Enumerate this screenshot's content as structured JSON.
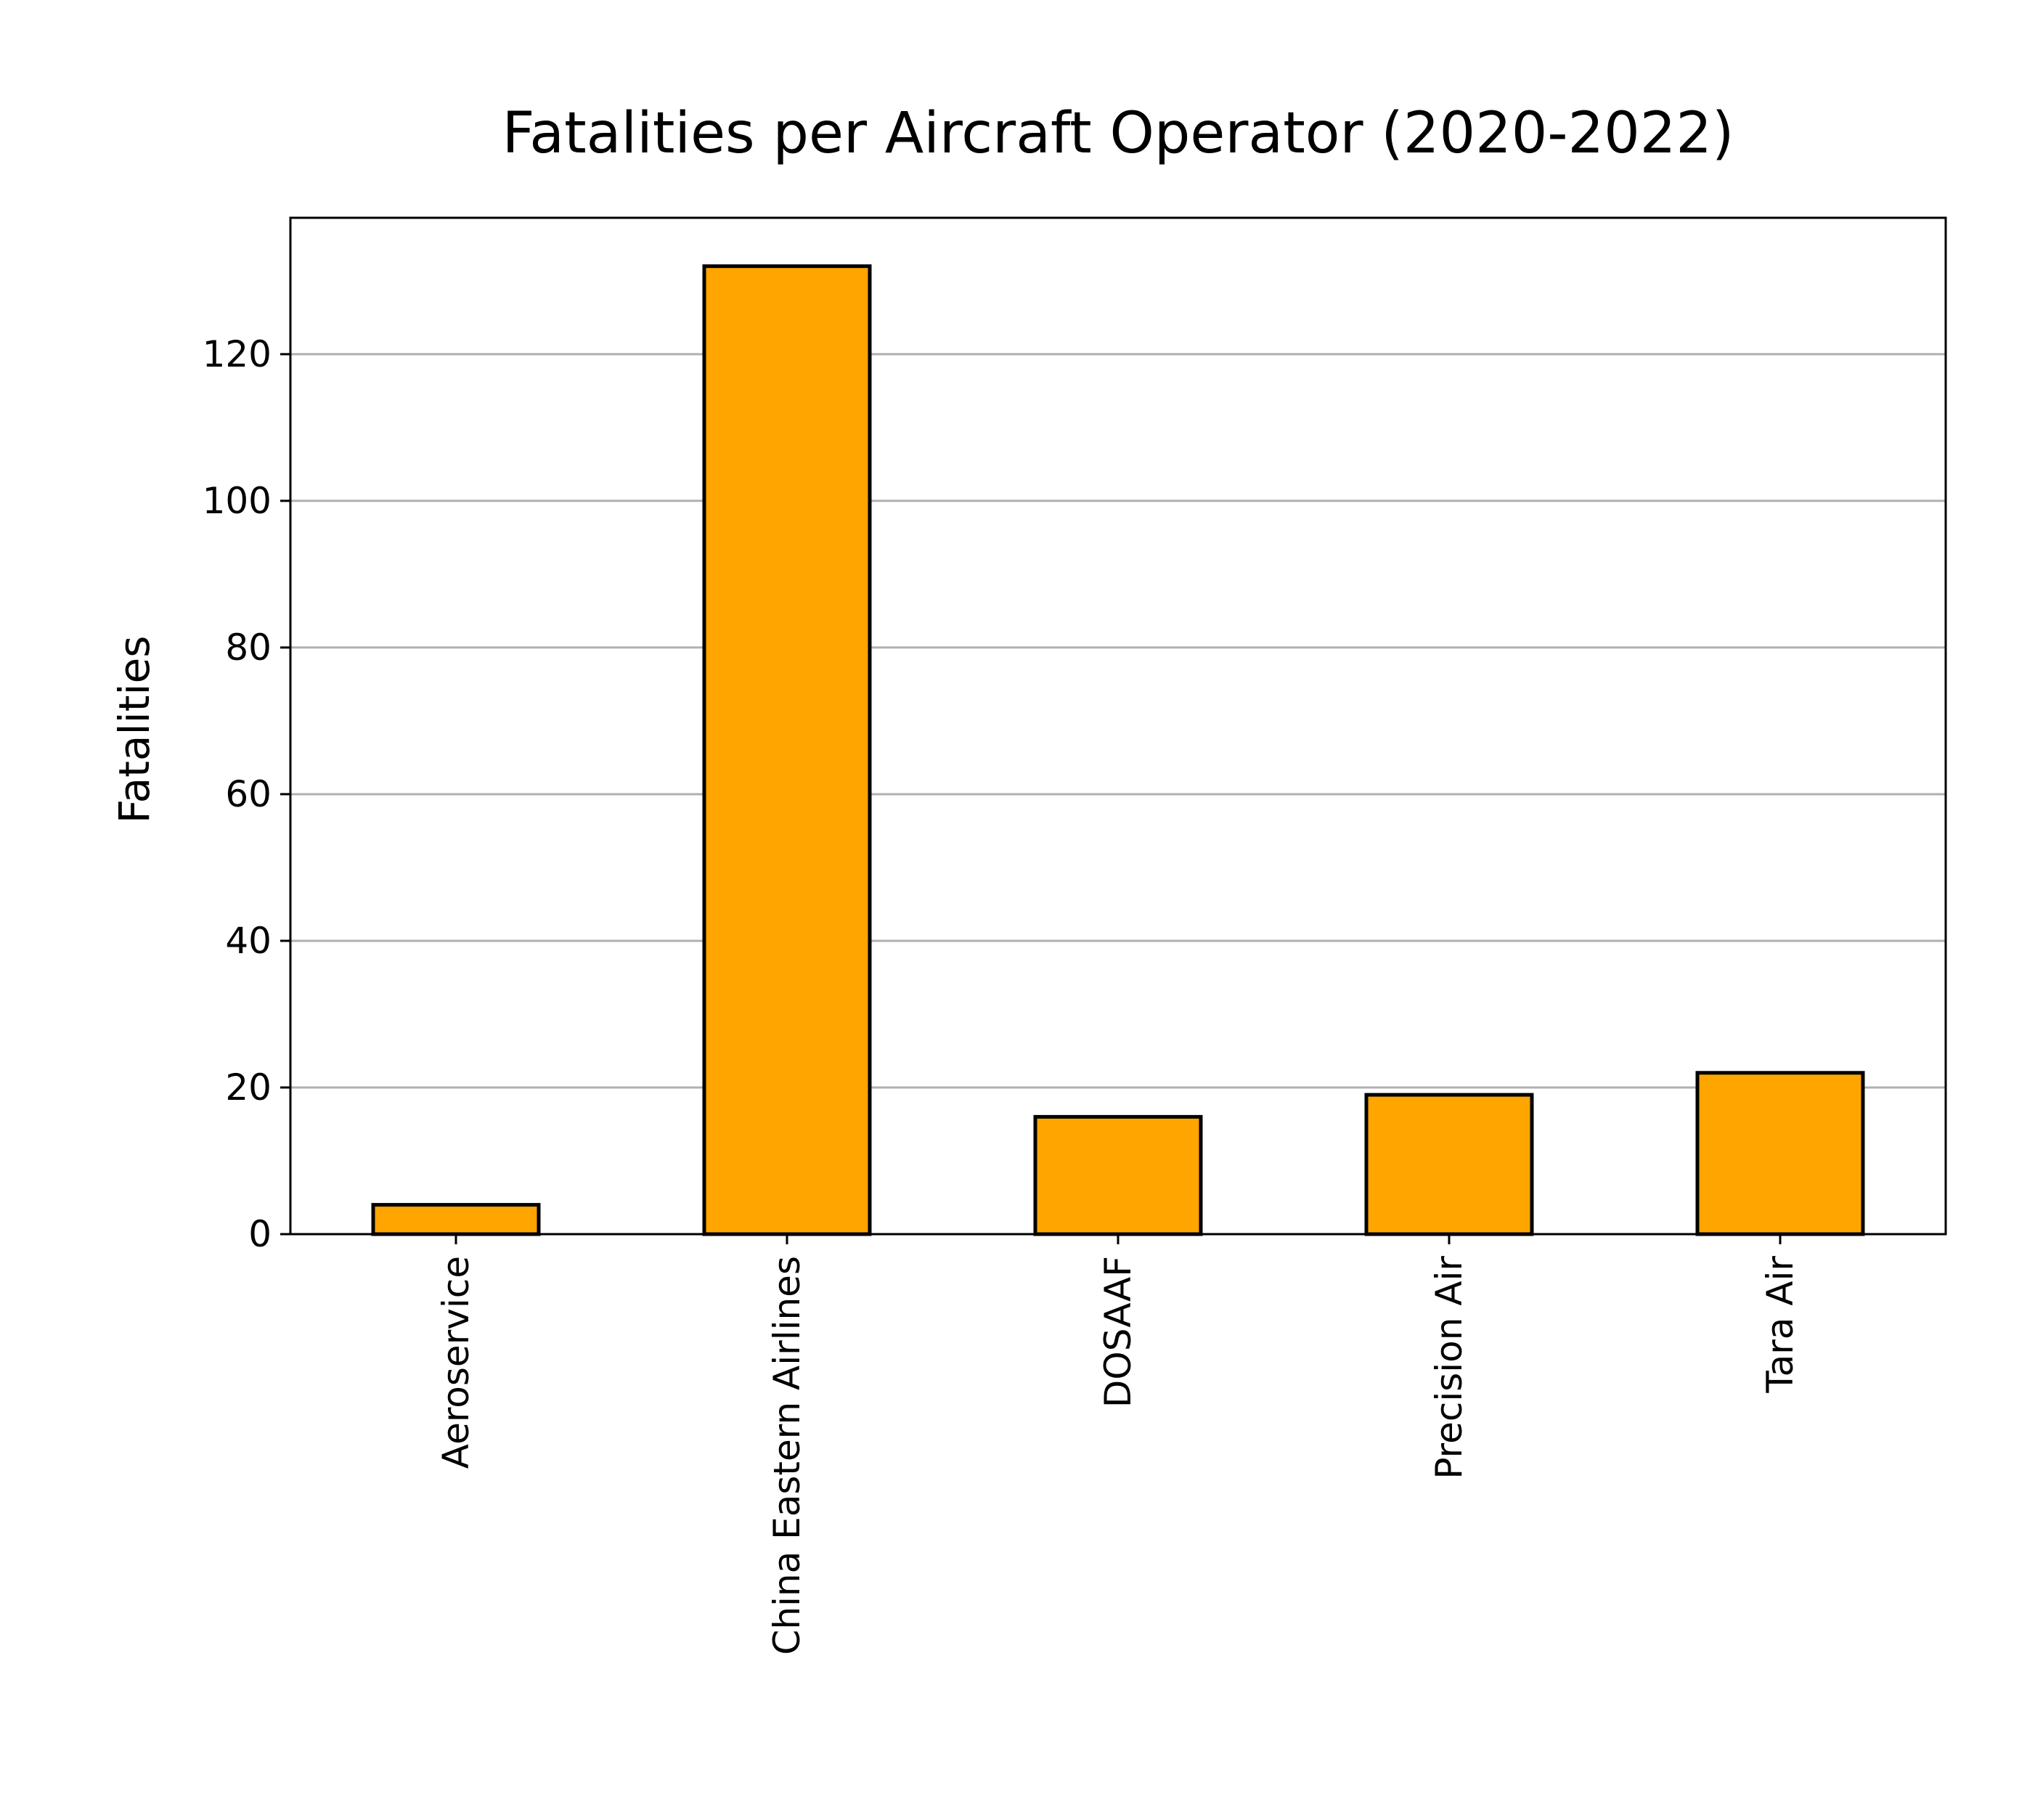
{
  "chart_data": {
    "type": "bar",
    "title": "Fatalities per Aircraft Operator (2020-2022)",
    "xlabel": "",
    "ylabel": "Fatalities",
    "categories": [
      "Aeroservice",
      "China Eastern Airlines",
      "DOSAAF",
      "Precision Air",
      "Tara Air"
    ],
    "values": [
      4,
      132,
      16,
      19,
      22
    ],
    "ylim": [
      0,
      138.6
    ],
    "yticks": [
      0,
      20,
      40,
      60,
      80,
      100,
      120
    ],
    "grid": {
      "y": true,
      "x": false
    },
    "colors": {
      "bar_fill": "#FFA500",
      "bar_edge": "#000000",
      "grid": "#b0b0b0",
      "axes": "#000000",
      "background": "#ffffff"
    }
  }
}
